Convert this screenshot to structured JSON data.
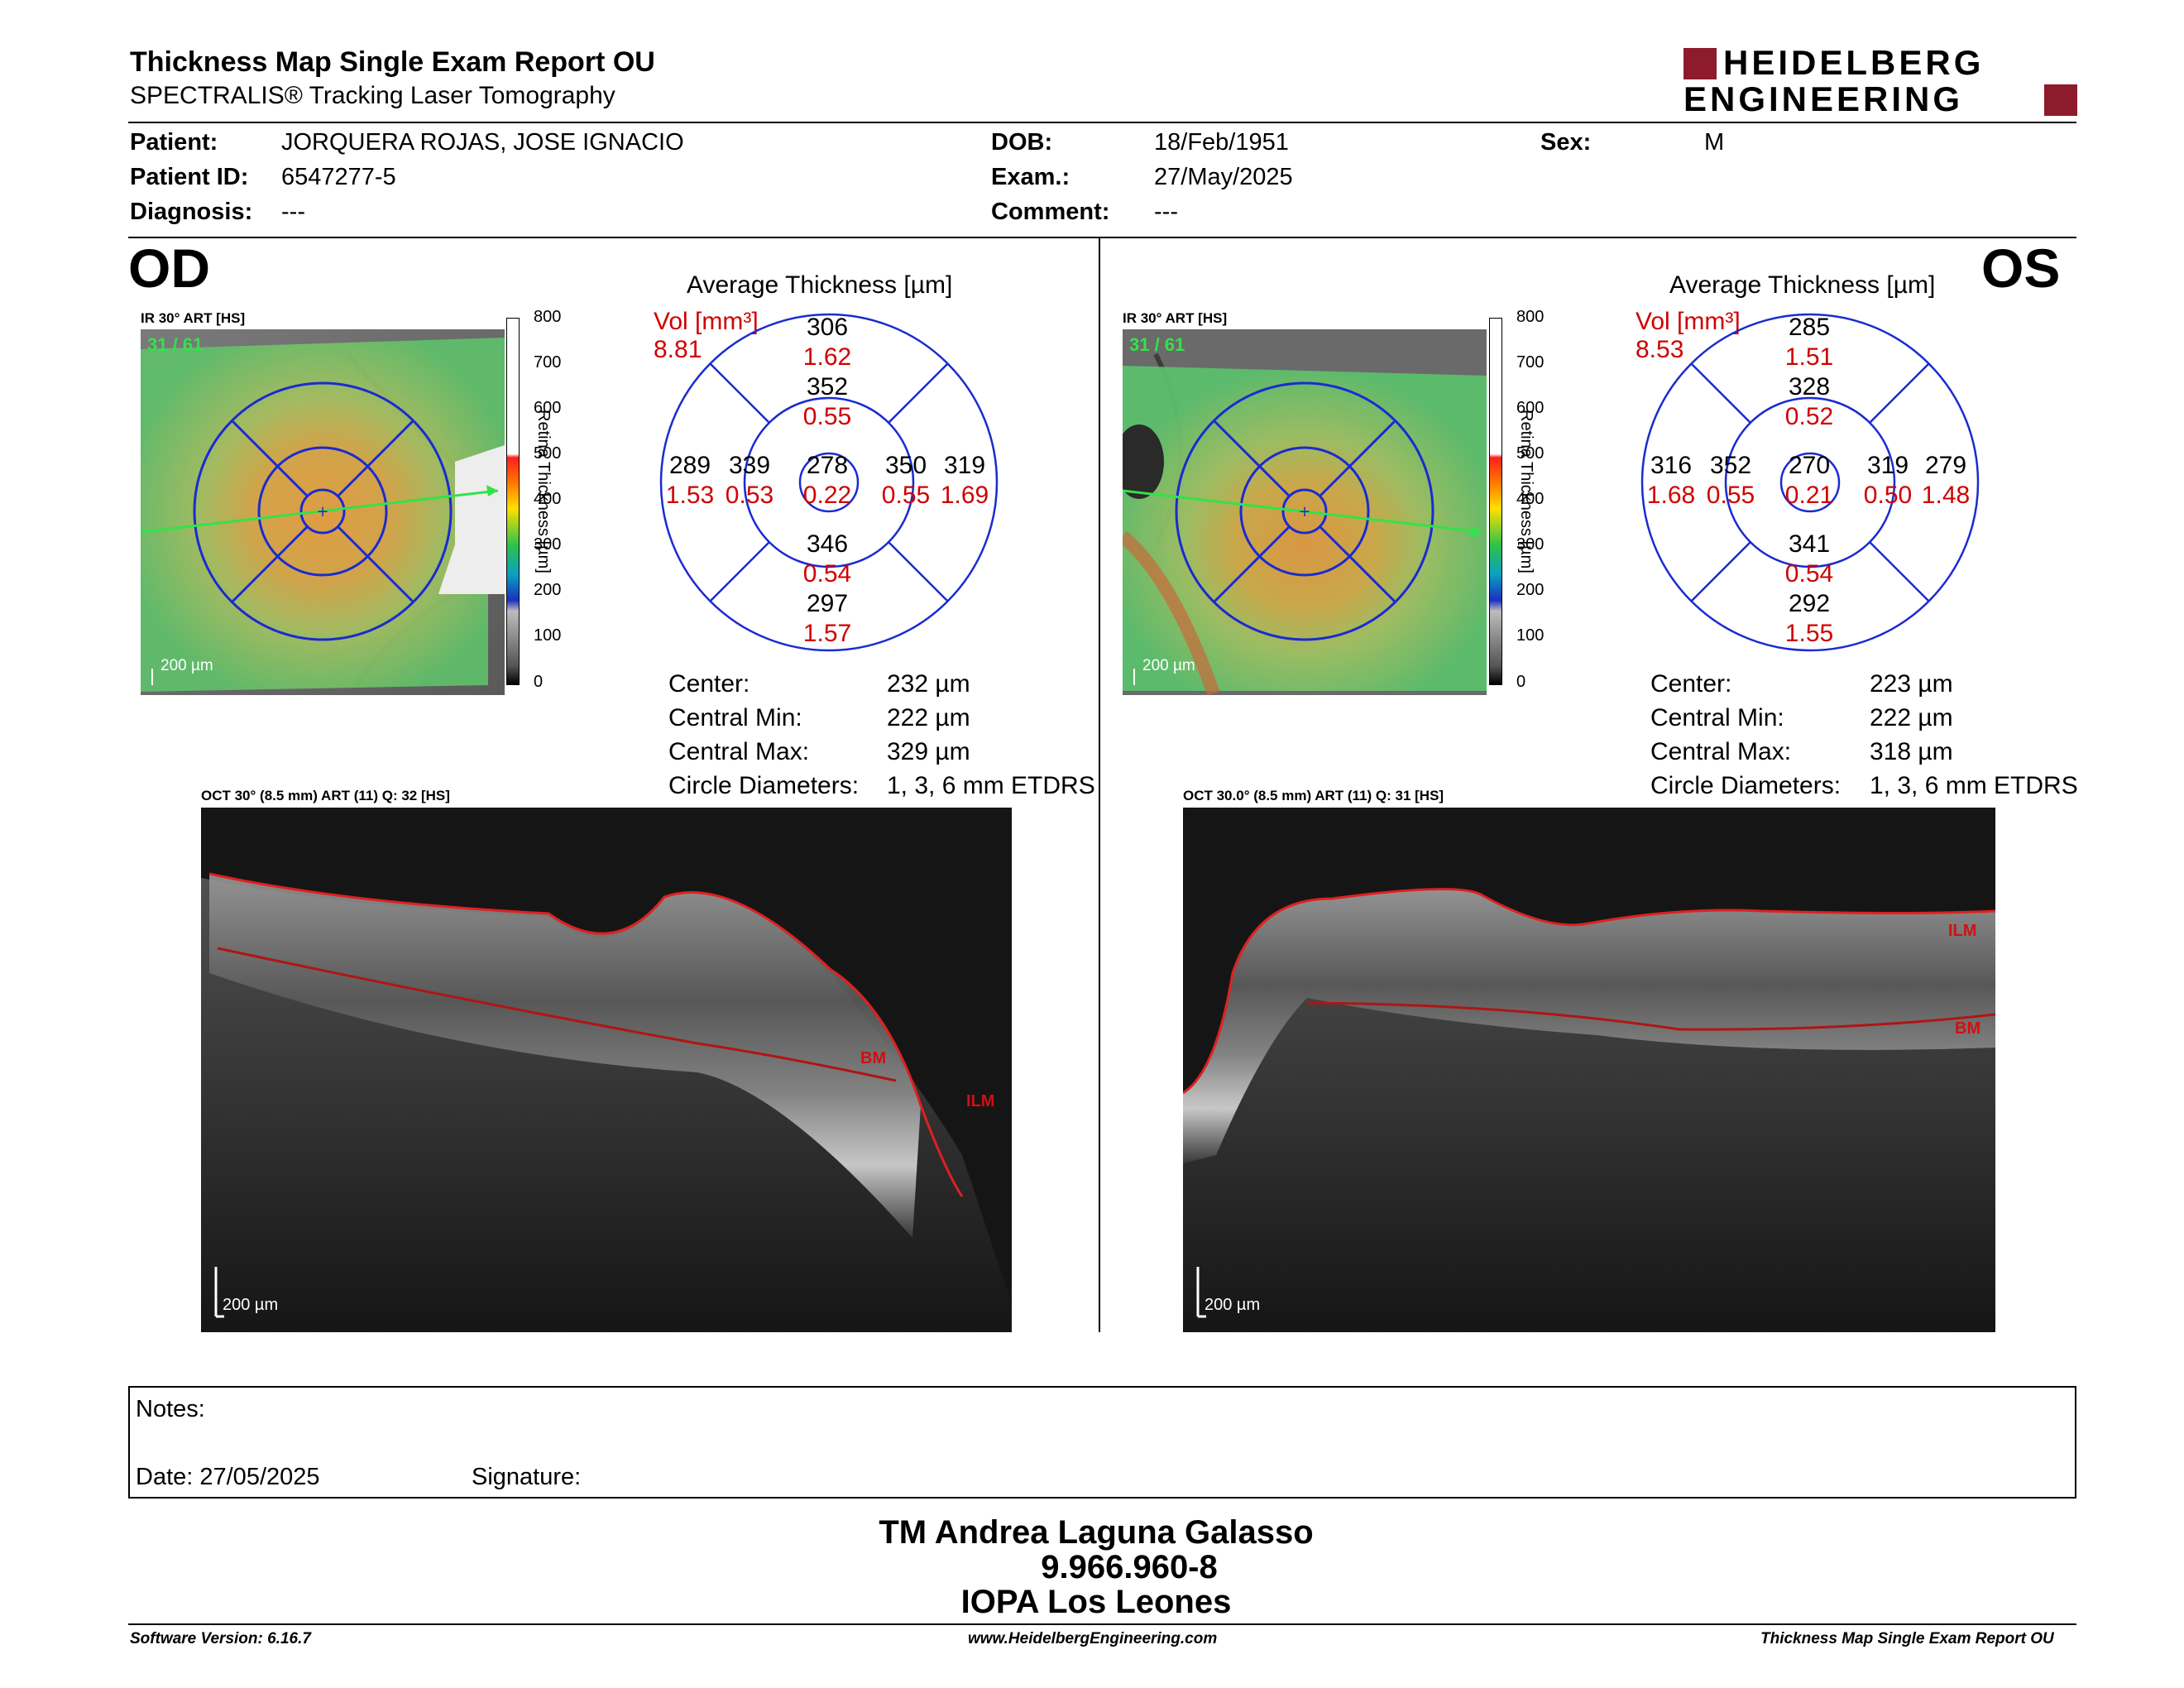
{
  "header": {
    "title": "Thickness Map Single Exam Report OU",
    "subtitle": "SPECTRALIS® Tracking Laser Tomography",
    "logo_line1": "HEIDELBERG",
    "logo_line2": "ENGINEERING",
    "brand_color": "#8e1b2b"
  },
  "patient": {
    "patient_label": "Patient:",
    "patient_value": "JORQUERA ROJAS, JOSE IGNACIO",
    "id_label": "Patient ID:",
    "id_value": "6547277-5",
    "diagnosis_label": "Diagnosis:",
    "diagnosis_value": "---",
    "dob_label": "DOB:",
    "dob_value": "18/Feb/1951",
    "exam_label": "Exam.:",
    "exam_value": "27/May/2025",
    "comment_label": "Comment:",
    "comment_value": "---",
    "sex_label": "Sex:",
    "sex_value": "M"
  },
  "colorbar": {
    "ticks": [
      "800",
      "700",
      "600",
      "500",
      "400",
      "300",
      "200",
      "100",
      "0"
    ],
    "axis_label": "Retina Thickness [µm]"
  },
  "od": {
    "eye": "OD",
    "ir_label": "IR 30° ART [HS]",
    "frame_count": "31 / 61",
    "scale": "200 µm",
    "avg_title": "Average Thickness [µm]",
    "vol_label": "Vol [mm³]",
    "vol_total": "8.81",
    "sectors": {
      "outer_sup": {
        "t": "306",
        "v": "1.62"
      },
      "inner_sup": {
        "t": "352",
        "v": "0.55"
      },
      "outer_temp": {
        "t": "289",
        "v": "1.53"
      },
      "inner_temp": {
        "t": "339",
        "v": "0.53"
      },
      "center": {
        "t": "278",
        "v": "0.22"
      },
      "inner_nasal": {
        "t": "350",
        "v": "0.55"
      },
      "outer_nasal": {
        "t": "319",
        "v": "1.69"
      },
      "inner_inf": {
        "t": "346",
        "v": "0.54"
      },
      "outer_inf": {
        "t": "297",
        "v": "1.57"
      }
    },
    "stats": [
      {
        "label": "Center:",
        "value": "232 µm"
      },
      {
        "label": "Central Min:",
        "value": "222 µm"
      },
      {
        "label": "Central Max:",
        "value": "329 µm"
      },
      {
        "label": "Circle Diameters:",
        "value": "1, 3, 6 mm ETDRS"
      }
    ],
    "oct_label": "OCT 30° (8.5 mm) ART (11) Q: 32 [HS]",
    "oct_scale": "200 µm",
    "bm_label": "BM",
    "ilm_label": "ILM"
  },
  "os": {
    "eye": "OS",
    "ir_label": "IR 30° ART [HS]",
    "frame_count": "31 / 61",
    "scale": "200 µm",
    "avg_title": "Average Thickness [µm]",
    "vol_label": "Vol [mm³]",
    "vol_total": "8.53",
    "sectors": {
      "outer_sup": {
        "t": "285",
        "v": "1.51"
      },
      "inner_sup": {
        "t": "328",
        "v": "0.52"
      },
      "outer_temp": {
        "t": "316",
        "v": "1.68"
      },
      "inner_temp": {
        "t": "352",
        "v": "0.55"
      },
      "center": {
        "t": "270",
        "v": "0.21"
      },
      "inner_nasal": {
        "t": "319",
        "v": "0.50"
      },
      "outer_nasal": {
        "t": "279",
        "v": "1.48"
      },
      "inner_inf": {
        "t": "341",
        "v": "0.54"
      },
      "outer_inf": {
        "t": "292",
        "v": "1.55"
      }
    },
    "stats": [
      {
        "label": "Center:",
        "value": "223 µm"
      },
      {
        "label": "Central Min:",
        "value": "222 µm"
      },
      {
        "label": "Central Max:",
        "value": "318 µm"
      },
      {
        "label": "Circle Diameters:",
        "value": "1, 3, 6 mm ETDRS"
      }
    ],
    "oct_label": "OCT 30.0° (8.5 mm) ART (11) Q: 31 [HS]",
    "oct_scale": "200 µm",
    "bm_label": "BM",
    "ilm_label": "ILM"
  },
  "notes": {
    "notes_label": "Notes:",
    "date_label": "Date: 27/05/2025",
    "signature_label": "Signature:"
  },
  "signature": {
    "name": "TM Andrea Laguna Galasso",
    "id": "9.966.960-8",
    "org": "IOPA Los Leones"
  },
  "footer": {
    "software": "Software Version: 6.16.7",
    "website": "www.HeidelbergEngineering.com",
    "report": "Thickness Map Single Exam Report OU"
  }
}
